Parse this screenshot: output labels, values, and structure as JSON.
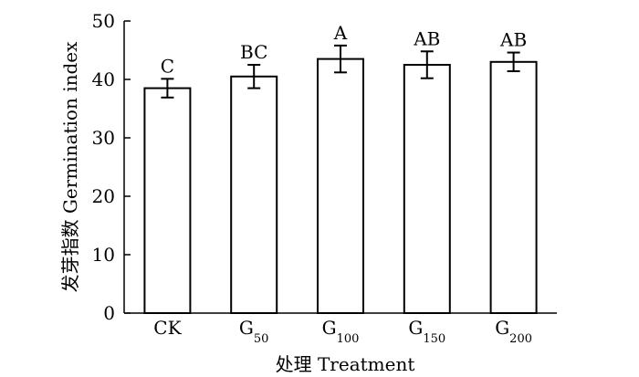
{
  "chart_data": {
    "type": "bar",
    "title": "",
    "xlabel": "处理 Treatment",
    "ylabel": "发芽指数 Germination index",
    "ylim": [
      0,
      50
    ],
    "yticks": [
      "0",
      "10",
      "20",
      "30",
      "40",
      "50"
    ],
    "categories": [
      {
        "base": "CK",
        "sub": ""
      },
      {
        "base": "G",
        "sub": "50"
      },
      {
        "base": "G",
        "sub": "100"
      },
      {
        "base": "G",
        "sub": "150"
      },
      {
        "base": "G",
        "sub": "200"
      }
    ],
    "values": [
      38.5,
      40.5,
      43.5,
      42.5,
      43.0
    ],
    "errors": [
      1.6,
      2.0,
      2.3,
      2.3,
      1.6
    ],
    "significance_letters": [
      "C",
      "BC",
      "A",
      "AB",
      "AB"
    ],
    "grid": false,
    "bar_fill": "#ffffff",
    "bar_stroke": "#000000"
  }
}
